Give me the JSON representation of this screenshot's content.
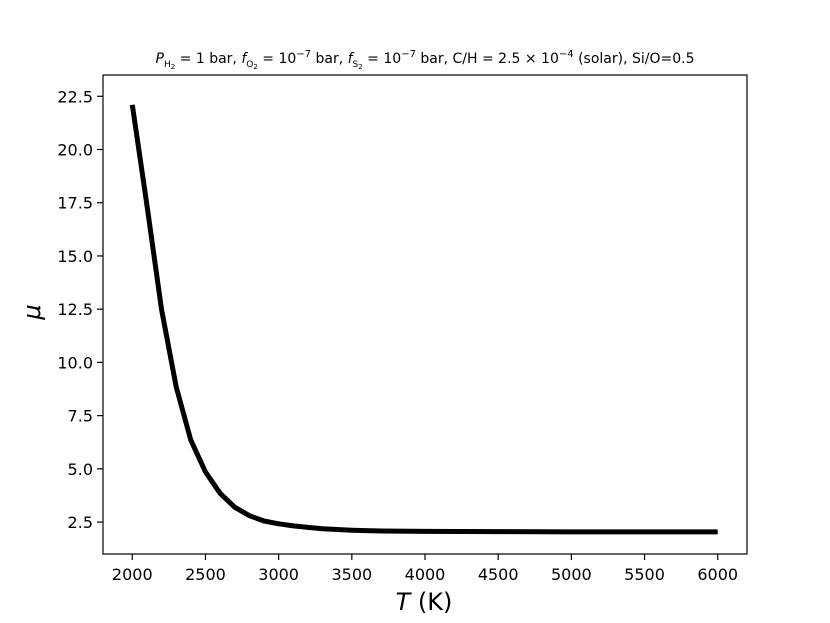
{
  "chart_data": {
    "type": "line",
    "title": "P_H2 = 1 bar, f_O2 = 10^-7 bar, f_S2 = 10^-7 bar, C/H = 2.5 × 10^-4 (solar), Si/O=0.5",
    "xlabel": "T (K)",
    "ylabel": "μ",
    "xlim": [
      1800,
      6200
    ],
    "ylim": [
      1.0,
      23.5
    ],
    "xticks": [
      "2000",
      "2500",
      "3000",
      "3500",
      "4000",
      "4500",
      "5000",
      "5500",
      "6000"
    ],
    "yticks": [
      "2.5",
      "5.0",
      "7.5",
      "10.0",
      "12.5",
      "15.0",
      "17.5",
      "20.0",
      "22.5"
    ],
    "grid": false,
    "series": [
      {
        "color": "#000000",
        "x": [
          2000,
          2100,
          2200,
          2300,
          2400,
          2500,
          2600,
          2700,
          2800,
          2900,
          3000,
          3100,
          3200,
          3300,
          3400,
          3500,
          3700,
          4000,
          4500,
          5000,
          5500,
          6000
        ],
        "y": [
          22.1,
          17.4,
          12.5,
          8.85,
          6.35,
          4.85,
          3.85,
          3.2,
          2.8,
          2.55,
          2.42,
          2.32,
          2.25,
          2.19,
          2.15,
          2.12,
          2.08,
          2.06,
          2.05,
          2.04,
          2.04,
          2.04
        ]
      }
    ]
  }
}
